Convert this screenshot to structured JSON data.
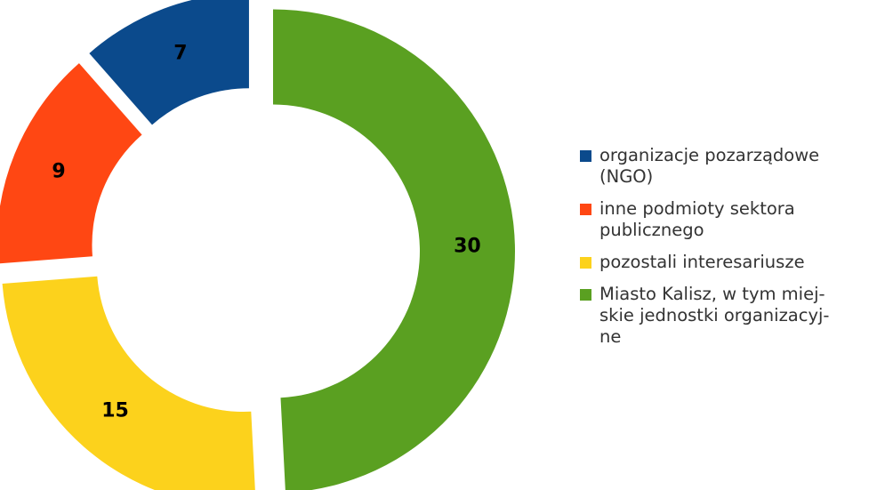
{
  "chart_data": {
    "type": "pie",
    "donut": true,
    "exploded": true,
    "title": "",
    "categories": [
      "organizacje pozarządowe (NGO)",
      "inne podmioty sektora publicznego",
      "pozostali interesariusze",
      "Miasto Kalisz, w tym miej-skie jednostki organizacyj-ne"
    ],
    "values": [
      7,
      9,
      15,
      30
    ],
    "colors": [
      "#0b4a8c",
      "#ff4713",
      "#fcd21c",
      "#5aa021"
    ],
    "data_labels": [
      "7",
      "9",
      "15",
      "30"
    ],
    "legend_position": "right"
  },
  "legend": {
    "items": [
      {
        "lines": [
          "organizacje pozarządowe",
          "(NGO)"
        ],
        "color": "#0b4a8c"
      },
      {
        "lines": [
          "inne podmioty sektora",
          "publicznego"
        ],
        "color": "#ff4713"
      },
      {
        "lines": [
          "pozostali interesariusze"
        ],
        "color": "#fcd21c"
      },
      {
        "lines": [
          "Miasto Kalisz, w tym miej-",
          "skie jednostki organizacyj-",
          "ne"
        ],
        "color": "#5aa021"
      }
    ]
  }
}
